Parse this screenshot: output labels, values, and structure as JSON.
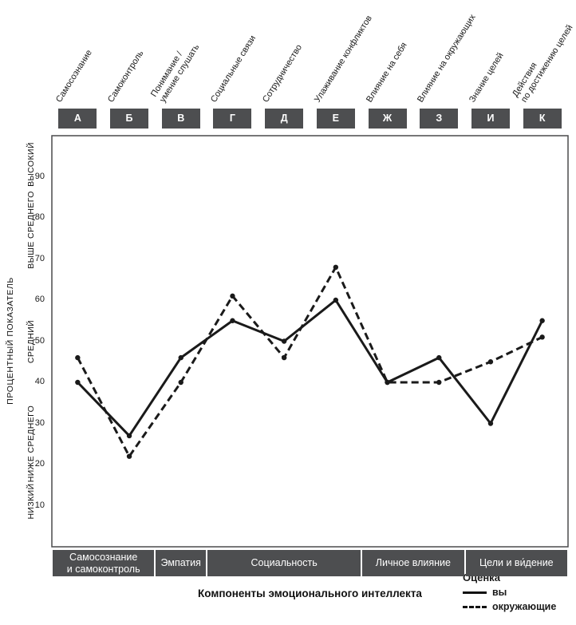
{
  "chart_data": {
    "type": "line",
    "xlabel": "Компоненты эмоционального интеллекта",
    "ylabel": "ПРОЦЕНТНЫЙ ПОКАЗАТЕЛЬ",
    "ylim": [
      0,
      100
    ],
    "yticks": [
      10,
      20,
      30,
      40,
      50,
      60,
      70,
      80,
      90
    ],
    "grid": false,
    "legend_title": "Оценка",
    "legend_position": "bottom-right",
    "categories": [
      "А",
      "Б",
      "В",
      "Г",
      "Д",
      "Е",
      "Ж",
      "З",
      "И",
      "К"
    ],
    "column_labels": [
      "Самосознание",
      "Самоконтроль",
      "Понимание /\nумение слушать",
      "Социальные связи",
      "Сотрудничество",
      "Улаживание конфликтов",
      "Влияние на себя",
      "Влияние на окружающих",
      "Знание целей",
      "Действия\nпо достижению целей"
    ],
    "zones": [
      {
        "label": "ВЫСОКИЙ",
        "center": 93
      },
      {
        "label": "ВЫШЕ СРЕДНЕГО",
        "center": 77
      },
      {
        "label": "СРЕДНИЙ",
        "center": 50
      },
      {
        "label": "НИЖЕ СРЕДНЕГО",
        "center": 25
      },
      {
        "label": "НИЗКИЙ",
        "center": 11
      }
    ],
    "groups": [
      {
        "label": "Самосознание\nи самоконтроль",
        "from": 0,
        "to": 1
      },
      {
        "label": "Эмпатия",
        "from": 2,
        "to": 2
      },
      {
        "label": "Социальность",
        "from": 3,
        "to": 5
      },
      {
        "label": "Личное влияние",
        "from": 6,
        "to": 7
      },
      {
        "label": "Цели и ви́дение",
        "from": 8,
        "to": 9
      }
    ],
    "series": [
      {
        "name": "вы",
        "style": "solid",
        "values": [
          40,
          27,
          46,
          55,
          50,
          60,
          40,
          46,
          30,
          55
        ]
      },
      {
        "name": "окружающие",
        "style": "dashed",
        "values": [
          46,
          22,
          40,
          61,
          46,
          68,
          40,
          40,
          45,
          51
        ]
      }
    ],
    "colors": {
      "line": "#1a1a1a",
      "box_bg": "#4d4e50",
      "box_text": "#ffffff",
      "frame": "#4a4a4c"
    }
  }
}
